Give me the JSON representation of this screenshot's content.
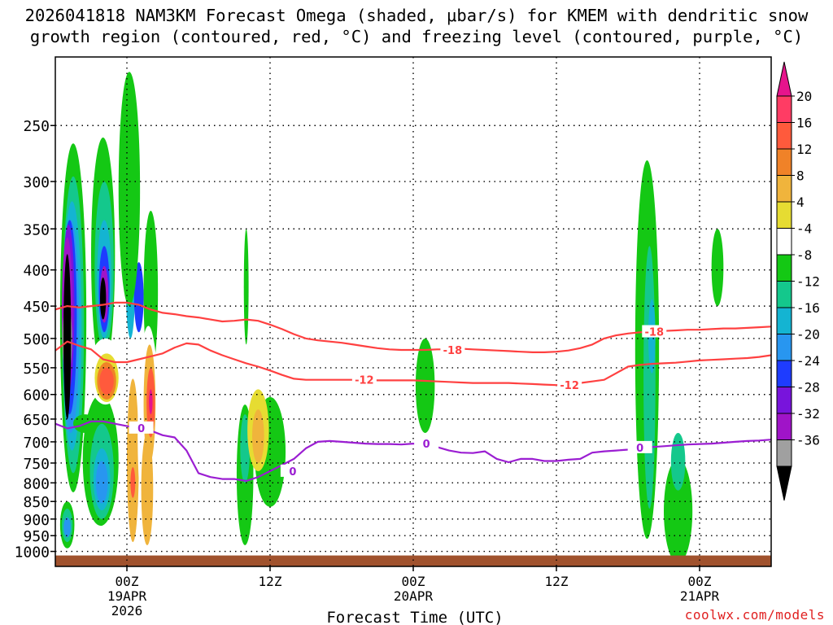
{
  "chart_data": {
    "type": "heatmap",
    "title_line1": "2026041818 NAM3KM Forecast Omega (shaded, μbar/s) for KMEM with dendritic snow",
    "title_line2": "growth region (contoured, red, °C) and freezing level (contoured, purple, °C)",
    "xlabel": "Forecast Time (UTC)",
    "watermark": "coolwx.com/models",
    "y_ticks": [
      "250",
      "300",
      "350",
      "400",
      "450",
      "500",
      "550",
      "600",
      "650",
      "700",
      "750",
      "800",
      "850",
      "900",
      "950",
      "1000"
    ],
    "y_tick_values": [
      250,
      300,
      350,
      400,
      450,
      500,
      550,
      600,
      650,
      700,
      750,
      800,
      850,
      900,
      950,
      1000
    ],
    "ylim": [
      200,
      1050
    ],
    "x_ticks": [
      {
        "hour": 6,
        "lines": [
          "00Z",
          "19APR",
          "2026"
        ]
      },
      {
        "hour": 18,
        "lines": [
          "12Z"
        ]
      },
      {
        "hour": 30,
        "lines": [
          "00Z",
          "20APR"
        ]
      },
      {
        "hour": 42,
        "lines": [
          "12Z"
        ]
      },
      {
        "hour": 54,
        "lines": [
          "00Z",
          "21APR"
        ]
      }
    ],
    "xlim": [
      0,
      60
    ],
    "colorbar": {
      "labels": [
        "20",
        "16",
        "12",
        "8",
        "4",
        "-4",
        "-8",
        "-12",
        "-16",
        "-20",
        "-24",
        "-28",
        "-32",
        "-36"
      ],
      "colors": [
        "#ff3c64",
        "#ff5a3c",
        "#f08228",
        "#f0b43c",
        "#e6dc32",
        "#ffffff",
        "#14c814",
        "#14c88c",
        "#14b4d2",
        "#2896f0",
        "#1e3cff",
        "#7814dc",
        "#a014c8",
        "#a0a0a0"
      ],
      "top_color": "#e6148c",
      "bottom_color": "#000000"
    },
    "contour_labels": {
      "m18": "-18",
      "m12": "-12",
      "zero": "0"
    },
    "series": [
      {
        "name": "-18C",
        "color": "#ff4040",
        "x": [
          0,
          1,
          2,
          3,
          4,
          5,
          6,
          7,
          8,
          9,
          10,
          11,
          12,
          13,
          14,
          15,
          16,
          17,
          18,
          19,
          20,
          21,
          22,
          23,
          24,
          25,
          26,
          27,
          28,
          29,
          30,
          31,
          32,
          33,
          34,
          35,
          36,
          37,
          38,
          39,
          40,
          41,
          42,
          43,
          44,
          45,
          46,
          47,
          48,
          49,
          50,
          51,
          52,
          53,
          54,
          55,
          56,
          57,
          58,
          59,
          60
        ],
        "y": [
          455,
          450,
          452,
          450,
          448,
          445,
          445,
          448,
          455,
          460,
          462,
          465,
          467,
          470,
          473,
          472,
          470,
          472,
          478,
          485,
          493,
          500,
          503,
          505,
          507,
          510,
          513,
          516,
          518,
          519,
          519,
          519,
          518,
          518,
          517,
          518,
          519,
          520,
          521,
          522,
          523,
          523,
          522,
          520,
          516,
          510,
          500,
          495,
          492,
          490,
          489,
          488,
          487,
          486,
          486,
          485,
          484,
          484,
          483,
          482,
          481
        ]
      },
      {
        "name": "-12C",
        "color": "#ff4040",
        "x": [
          0,
          1,
          2,
          3,
          4,
          5,
          6,
          7,
          8,
          9,
          10,
          11,
          12,
          13,
          14,
          15,
          16,
          17,
          18,
          19,
          20,
          21,
          22,
          23,
          24,
          25,
          26,
          27,
          28,
          29,
          30,
          31,
          32,
          33,
          34,
          35,
          36,
          37,
          38,
          39,
          40,
          41,
          42,
          43,
          44,
          45,
          46,
          47,
          48,
          49,
          50,
          51,
          52,
          53,
          54,
          55,
          56,
          57,
          58,
          59,
          60
        ],
        "y": [
          520,
          505,
          512,
          518,
          535,
          540,
          540,
          535,
          530,
          525,
          515,
          508,
          510,
          520,
          528,
          535,
          542,
          548,
          555,
          563,
          570,
          572,
          572,
          572,
          572,
          572,
          572,
          573,
          573,
          573,
          573,
          574,
          575,
          576,
          577,
          578,
          578,
          578,
          578,
          579,
          580,
          581,
          582,
          580,
          578,
          575,
          572,
          560,
          548,
          545,
          543,
          542,
          541,
          539,
          537,
          536,
          535,
          534,
          533,
          531,
          528
        ]
      },
      {
        "name": "0C",
        "color": "#9b1ed2",
        "x": [
          0,
          1,
          2,
          3,
          4,
          5,
          6,
          7,
          8,
          9,
          10,
          11,
          12,
          13,
          14,
          15,
          16,
          17,
          18,
          19,
          20,
          21,
          22,
          23,
          24,
          25,
          26,
          27,
          28,
          29,
          30,
          31,
          32,
          33,
          34,
          35,
          36,
          37,
          38,
          39,
          40,
          41,
          42,
          43,
          44,
          45,
          46,
          47,
          48,
          49,
          50,
          51,
          52,
          53,
          54,
          55,
          56,
          57,
          58,
          59,
          60
        ],
        "y": [
          660,
          670,
          665,
          655,
          655,
          660,
          665,
          670,
          675,
          685,
          690,
          720,
          775,
          785,
          790,
          790,
          795,
          785,
          770,
          755,
          740,
          715,
          700,
          698,
          700,
          702,
          704,
          705,
          705,
          706,
          704,
          708,
          712,
          720,
          725,
          726,
          722,
          740,
          748,
          740,
          740,
          745,
          745,
          742,
          740,
          725,
          722,
          720,
          718,
          715,
          712,
          710,
          708,
          706,
          705,
          704,
          702,
          700,
          698,
          697,
          695
        ]
      }
    ],
    "omega_regions": [
      {
        "c": 5,
        "x": 48.5,
        "p": 440,
        "rx": 3.0,
        "rp": 100
      },
      {
        "c": 5,
        "x": 57.5,
        "p": 230,
        "rx": 2.0,
        "rp": 60
      },
      {
        "c": 5,
        "x": 44.5,
        "p": 340,
        "rx": 3.0,
        "rp": 110
      },
      {
        "c": 5,
        "x": 24.5,
        "p": 410,
        "rx": 2.0,
        "rp": 80
      },
      {
        "c": 5,
        "x": 21.5,
        "p": 565,
        "rx": 4.0,
        "rp": 165
      },
      {
        "c": 5,
        "x": 17.5,
        "p": 735,
        "rx": 3.0,
        "rp": 210
      },
      {
        "c": 6,
        "x": 18.0,
        "p": 735,
        "rx": 1.3,
        "rp": 130
      },
      {
        "c": 6,
        "x": 16.0,
        "p": 430,
        "rx": 0.2,
        "rp": 80
      },
      {
        "c": 5,
        "x": 25.0,
        "p": 600,
        "rx": 1.2,
        "rp": 60
      },
      {
        "c": 5,
        "x": 27.5,
        "p": 810,
        "rx": 1.2,
        "rp": 80
      },
      {
        "c": 5,
        "x": 34.0,
        "p": 310,
        "rx": 1.2,
        "rp": 60
      },
      {
        "c": 5,
        "x": 35.8,
        "p": 745,
        "rx": 0.5,
        "rp": 50
      },
      {
        "c": 5,
        "x": 40.5,
        "p": 790,
        "rx": 1.2,
        "rp": 80
      },
      {
        "c": 5,
        "x": 54.0,
        "p": 590,
        "rx": 0.6,
        "rp": 60
      },
      {
        "c": 5,
        "x": 5.2,
        "p": 270,
        "rx": 0.8,
        "rp": 120
      },
      {
        "c": 5,
        "x": 1.2,
        "p": 240,
        "rx": 0.4,
        "rp": 40
      },
      {
        "c": 5,
        "x": 3.1,
        "p": 755,
        "rx": 0.4,
        "rp": 60
      },
      {
        "c": 5,
        "x": 12.7,
        "p": 430,
        "rx": 0.4,
        "rp": 50
      },
      {
        "c": 5,
        "x": 9.2,
        "p": 780,
        "rx": 1.2,
        "rp": 170
      },
      {
        "c": 5,
        "x": 30.4,
        "p": 540,
        "rx": 0.9,
        "rp": 130
      },
      {
        "c": 6,
        "x": 31.0,
        "p": 590,
        "rx": 0.8,
        "rp": 90
      },
      {
        "c": 6,
        "x": 52.2,
        "p": 890,
        "rx": 1.2,
        "rp": 150
      },
      {
        "c": 7,
        "x": 52.2,
        "p": 750,
        "rx": 0.6,
        "rp": 70
      },
      {
        "c": 6,
        "x": 49.6,
        "p": 620,
        "rx": 1.0,
        "rp": 340
      },
      {
        "c": 7,
        "x": 49.8,
        "p": 620,
        "rx": 0.5,
        "rp": 250
      },
      {
        "c": 8,
        "x": 50.0,
        "p": 500,
        "rx": 0.3,
        "rp": 60
      },
      {
        "c": 6,
        "x": 15.9,
        "p": 800,
        "rx": 0.7,
        "rp": 180
      },
      {
        "c": 7,
        "x": 15.9,
        "p": 720,
        "rx": 0.4,
        "rp": 80
      },
      {
        "c": 6,
        "x": 55.5,
        "p": 400,
        "rx": 0.5,
        "rp": 50
      },
      {
        "c": 6,
        "x": 8.0,
        "p": 445,
        "rx": 0.6,
        "rp": 115
      },
      {
        "c": 8,
        "x": 6.3,
        "p": 420,
        "rx": 0.4,
        "rp": 80
      },
      {
        "c": 10,
        "x": 7.0,
        "p": 440,
        "rx": 0.4,
        "rp": 50
      },
      {
        "c": 6,
        "x": 1.5,
        "p": 545,
        "rx": 1.1,
        "rp": 280
      },
      {
        "c": 7,
        "x": 1.5,
        "p": 535,
        "rx": 0.9,
        "rp": 240
      },
      {
        "c": 8,
        "x": 1.4,
        "p": 520,
        "rx": 0.8,
        "rp": 200
      },
      {
        "c": 9,
        "x": 1.3,
        "p": 510,
        "rx": 0.7,
        "rp": 170
      },
      {
        "c": 10,
        "x": 1.2,
        "p": 490,
        "rx": 0.6,
        "rp": 150
      },
      {
        "c": 11,
        "x": 1.1,
        "p": 470,
        "rx": 0.5,
        "rp": 125
      },
      {
        "c": 12,
        "x": 1.0,
        "p": 470,
        "rx": 0.45,
        "rp": 110
      },
      {
        "c": 13,
        "x": 1.0,
        "p": 505,
        "rx": 0.4,
        "rp": 60
      },
      {
        "c": 15,
        "x": 1.0,
        "p": 515,
        "rx": 0.32,
        "rp": 135
      },
      {
        "c": 6,
        "x": 4.0,
        "p": 410,
        "rx": 1.0,
        "rp": 150
      },
      {
        "c": 7,
        "x": 4.1,
        "p": 410,
        "rx": 0.8,
        "rp": 110
      },
      {
        "c": 8,
        "x": 4.1,
        "p": 420,
        "rx": 0.6,
        "rp": 80
      },
      {
        "c": 10,
        "x": 4.1,
        "p": 430,
        "rx": 0.45,
        "rp": 60
      },
      {
        "c": 12,
        "x": 4.1,
        "p": 435,
        "rx": 0.35,
        "rp": 40
      },
      {
        "c": 15,
        "x": 4.0,
        "p": 440,
        "rx": 0.25,
        "rp": 30
      },
      {
        "c": 6,
        "x": 6.2,
        "p": 330,
        "rx": 0.9,
        "rp": 120
      },
      {
        "c": 6,
        "x": 3.8,
        "p": 760,
        "rx": 1.5,
        "rp": 160
      },
      {
        "c": 7,
        "x": 3.9,
        "p": 780,
        "rx": 1.0,
        "rp": 120
      },
      {
        "c": 8,
        "x": 3.9,
        "p": 795,
        "rx": 0.7,
        "rp": 80
      },
      {
        "c": 9,
        "x": 3.9,
        "p": 800,
        "rx": 0.5,
        "rp": 55
      },
      {
        "c": 6,
        "x": 1.0,
        "p": 920,
        "rx": 0.6,
        "rp": 70
      },
      {
        "c": 7,
        "x": 1.0,
        "p": 920,
        "rx": 0.45,
        "rp": 50
      },
      {
        "c": 9,
        "x": 1.0,
        "p": 925,
        "rx": 0.3,
        "rp": 30
      },
      {
        "c": 6,
        "x": 2.5,
        "p": 660,
        "rx": 1.0,
        "rp": 20
      },
      {
        "c": 5,
        "x": 6.5,
        "p": 730,
        "rx": 0.9,
        "rp": 230
      },
      {
        "c": 3,
        "x": 6.5,
        "p": 770,
        "rx": 0.5,
        "rp": 200
      },
      {
        "c": 1,
        "x": 6.5,
        "p": 800,
        "rx": 0.2,
        "rp": 40
      },
      {
        "c": 5,
        "x": 7.8,
        "p": 720,
        "rx": 0.9,
        "rp": 240
      },
      {
        "c": 3,
        "x": 7.9,
        "p": 630,
        "rx": 0.5,
        "rp": 120
      },
      {
        "c": 1,
        "x": 8.0,
        "p": 620,
        "rx": 0.35,
        "rp": 70
      },
      {
        "c": 14,
        "x": 8.0,
        "p": 615,
        "rx": 0.15,
        "rp": 25
      },
      {
        "c": 3,
        "x": 7.7,
        "p": 830,
        "rx": 0.5,
        "rp": 150
      },
      {
        "c": 5,
        "x": 4.2,
        "p": 560,
        "rx": 1.4,
        "rp": 60
      },
      {
        "c": 4,
        "x": 4.3,
        "p": 570,
        "rx": 1.0,
        "rp": 45
      },
      {
        "c": 2,
        "x": 4.3,
        "p": 575,
        "rx": 0.8,
        "rp": 35
      },
      {
        "c": 1,
        "x": 4.3,
        "p": 575,
        "rx": 0.6,
        "rp": 25
      },
      {
        "c": 4,
        "x": 17.0,
        "p": 680,
        "rx": 0.9,
        "rp": 90
      },
      {
        "c": 3,
        "x": 17.0,
        "p": 690,
        "rx": 0.5,
        "rp": 60
      }
    ]
  }
}
